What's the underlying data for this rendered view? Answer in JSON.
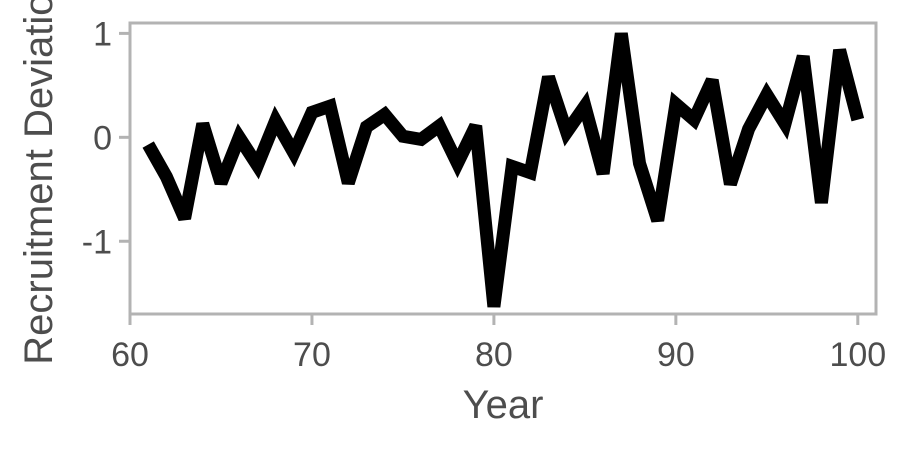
{
  "chart_data": {
    "type": "line",
    "title": "",
    "xlabel": "Year",
    "ylabel": "Recruitment Deviation",
    "xlim": [
      60,
      101
    ],
    "ylim": [
      -1.7,
      1.1
    ],
    "x_ticks": [
      60,
      70,
      80,
      90,
      100
    ],
    "y_ticks": [
      1,
      0,
      -1
    ],
    "grid": false,
    "legend": "none",
    "colors": {
      "line": "#000000",
      "frame": "#b3b3b3",
      "text": "#4d4d4d"
    },
    "series": [
      {
        "x": [
          61,
          62,
          63,
          64,
          65,
          66,
          67,
          68,
          69,
          70,
          71,
          72,
          73,
          74,
          75,
          76,
          77,
          78,
          79,
          80,
          81,
          82,
          83,
          84,
          85,
          86,
          87,
          88,
          89,
          90,
          91,
          92,
          93,
          94,
          95,
          96,
          97,
          98,
          99,
          100
        ],
        "values": [
          -0.07,
          -0.38,
          -0.78,
          0.13,
          -0.44,
          0.0,
          -0.27,
          0.16,
          -0.15,
          0.24,
          0.3,
          -0.44,
          0.1,
          0.22,
          0.01,
          -0.02,
          0.11,
          -0.25,
          0.11,
          -1.63,
          -0.28,
          -0.34,
          0.58,
          0.05,
          0.3,
          -0.35,
          1.0,
          -0.25,
          -0.8,
          0.32,
          0.17,
          0.55,
          -0.45,
          0.08,
          0.41,
          0.13,
          0.78,
          -0.63,
          0.84,
          0.17
        ]
      }
    ]
  }
}
